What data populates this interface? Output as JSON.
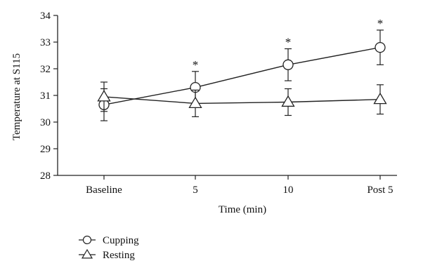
{
  "chart_data": {
    "type": "line",
    "title": "",
    "xlabel": "Time (min)",
    "ylabel": "Temperature at S115",
    "categories": [
      "Baseline",
      "5",
      "10",
      "Post 5"
    ],
    "ylim": [
      28,
      34
    ],
    "yticks": [
      28,
      29,
      30,
      31,
      32,
      33,
      34
    ],
    "grid": false,
    "legend_placement": "bottom-left",
    "series": [
      {
        "name": "Cupping",
        "marker": "circle",
        "color": "#222222",
        "values": [
          30.65,
          31.3,
          32.15,
          32.8
        ],
        "error": [
          0.6,
          0.6,
          0.6,
          0.65
        ]
      },
      {
        "name": "Resting",
        "marker": "triangle",
        "color": "#222222",
        "values": [
          30.95,
          30.7,
          30.75,
          30.85
        ],
        "error": [
          0.55,
          0.5,
          0.5,
          0.55
        ]
      }
    ],
    "annotations": [
      {
        "category": "5",
        "text": "*"
      },
      {
        "category": "10",
        "text": "*"
      },
      {
        "category": "Post 5",
        "text": "*"
      }
    ]
  }
}
